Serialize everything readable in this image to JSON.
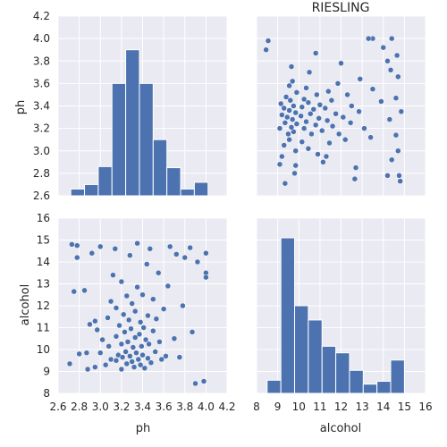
{
  "chart_data": {
    "type": "pairplot",
    "title": "RIESLING",
    "variables": [
      "ph",
      "alcohol"
    ],
    "color": "#4C72B0",
    "grid": true,
    "ph_ticks": [
      "2.6",
      "2.8",
      "3.0",
      "3.2",
      "3.4",
      "3.6",
      "3.8",
      "4.0",
      "4.2"
    ],
    "ph_hist_yticks": [
      "2.6",
      "2.8",
      "3.0",
      "3.2",
      "3.4",
      "3.6",
      "3.8",
      "4.0",
      "4.2"
    ],
    "alcohol_ticks": [
      "8",
      "9",
      "10",
      "11",
      "12",
      "13",
      "14",
      "15",
      "16"
    ],
    "xlabel_left": "ph",
    "xlabel_right": "alcohol",
    "ylabel_top": "ph",
    "ylabel_bottom": "alcohol",
    "ph_histogram": {
      "bins": [
        [
          2.72,
          2.85
        ],
        [
          2.85,
          2.98
        ],
        [
          2.98,
          3.11
        ],
        [
          3.11,
          3.24
        ],
        [
          3.24,
          3.37
        ],
        [
          3.37,
          3.5
        ],
        [
          3.5,
          3.63
        ],
        [
          3.63,
          3.76
        ],
        [
          3.76,
          3.89
        ],
        [
          3.89,
          4.02
        ]
      ],
      "heights": [
        2.66,
        2.7,
        2.86,
        3.6,
        3.9,
        3.6,
        3.1,
        2.85,
        2.66,
        2.72
      ]
    },
    "alcohol_histogram": {
      "bins": [
        [
          8.5,
          9.15
        ],
        [
          9.15,
          9.8
        ],
        [
          9.8,
          10.45
        ],
        [
          10.45,
          11.1
        ],
        [
          11.1,
          11.75
        ],
        [
          11.75,
          12.4
        ],
        [
          12.4,
          13.05
        ],
        [
          13.05,
          13.7
        ],
        [
          13.7,
          14.35
        ],
        [
          14.35,
          15.0
        ]
      ],
      "heights": [
        8.6,
        15.1,
        12.0,
        11.35,
        10.15,
        9.85,
        9.05,
        8.42,
        8.55,
        9.52
      ]
    },
    "points": [
      [
        2.71,
        9.35
      ],
      [
        2.73,
        14.8
      ],
      [
        2.75,
        12.65
      ],
      [
        2.78,
        14.2
      ],
      [
        2.78,
        14.75
      ],
      [
        2.8,
        9.8
      ],
      [
        2.85,
        12.7
      ],
      [
        2.87,
        9.85
      ],
      [
        2.88,
        9.1
      ],
      [
        2.9,
        11.15
      ],
      [
        2.92,
        14.4
      ],
      [
        2.95,
        11.3
      ],
      [
        2.95,
        9.2
      ],
      [
        2.97,
        10.9
      ],
      [
        3.0,
        9.85
      ],
      [
        3.0,
        14.7
      ],
      [
        3.02,
        10.45
      ],
      [
        3.05,
        9.3
      ],
      [
        3.07,
        11.45
      ],
      [
        3.08,
        10.15
      ],
      [
        3.1,
        9.55
      ],
      [
        3.1,
        12.2
      ],
      [
        3.12,
        13.4
      ],
      [
        3.14,
        14.6
      ],
      [
        3.15,
        9.5
      ],
      [
        3.15,
        10.6
      ],
      [
        3.15,
        11.9
      ],
      [
        3.17,
        9.75
      ],
      [
        3.18,
        11.1
      ],
      [
        3.2,
        10.25
      ],
      [
        3.2,
        9.1
      ],
      [
        3.2,
        13.1
      ],
      [
        3.21,
        9.65
      ],
      [
        3.22,
        11.6
      ],
      [
        3.23,
        10.8
      ],
      [
        3.24,
        9.9
      ],
      [
        3.25,
        12.45
      ],
      [
        3.25,
        9.35
      ],
      [
        3.26,
        10.35
      ],
      [
        3.27,
        11.35
      ],
      [
        3.28,
        9.7
      ],
      [
        3.28,
        14.3
      ],
      [
        3.29,
        10.95
      ],
      [
        3.3,
        9.45
      ],
      [
        3.3,
        12.1
      ],
      [
        3.31,
        10.1
      ],
      [
        3.32,
        9.2
      ],
      [
        3.33,
        11.75
      ],
      [
        3.33,
        10.55
      ],
      [
        3.34,
        9.85
      ],
      [
        3.35,
        14.85
      ],
      [
        3.35,
        12.85
      ],
      [
        3.36,
        9.55
      ],
      [
        3.37,
        10.7
      ],
      [
        3.38,
        11.25
      ],
      [
        3.38,
        9.3
      ],
      [
        3.39,
        10.15
      ],
      [
        3.4,
        12.5
      ],
      [
        3.4,
        9.75
      ],
      [
        3.41,
        11.0
      ],
      [
        3.42,
        9.15
      ],
      [
        3.43,
        10.45
      ],
      [
        3.44,
        13.9
      ],
      [
        3.45,
        9.6
      ],
      [
        3.45,
        11.55
      ],
      [
        3.46,
        10.25
      ],
      [
        3.47,
        14.6
      ],
      [
        3.48,
        9.4
      ],
      [
        3.5,
        10.85
      ],
      [
        3.5,
        12.3
      ],
      [
        3.52,
        9.9
      ],
      [
        3.53,
        11.4
      ],
      [
        3.55,
        13.5
      ],
      [
        3.56,
        10.35
      ],
      [
        3.58,
        9.55
      ],
      [
        3.6,
        11.85
      ],
      [
        3.62,
        9.7
      ],
      [
        3.64,
        12.9
      ],
      [
        3.66,
        14.7
      ],
      [
        3.7,
        10.5
      ],
      [
        3.72,
        14.35
      ],
      [
        3.75,
        9.65
      ],
      [
        3.78,
        12.0
      ],
      [
        3.8,
        14.2
      ],
      [
        3.85,
        14.65
      ],
      [
        3.87,
        10.8
      ],
      [
        3.9,
        8.45
      ],
      [
        3.92,
        14.0
      ],
      [
        3.98,
        8.55
      ],
      [
        4.0,
        13.5
      ],
      [
        4.0,
        13.3
      ],
      [
        4.0,
        14.4
      ]
    ]
  }
}
